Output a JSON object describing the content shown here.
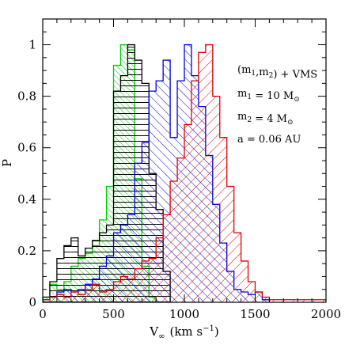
{
  "chart_data": {
    "type": "histogram",
    "xlabel": "V",
    "xlabel_sub": "∞",
    "xlabel_units": "(km s",
    "xlabel_units_sup": "−1",
    "xlabel_units_end": ")",
    "ylabel": "P",
    "xlim": [
      0,
      2000
    ],
    "ylim": [
      0,
      1.1
    ],
    "x_ticks": [
      0,
      500,
      1000,
      1500,
      2000
    ],
    "y_ticks": [
      0,
      0.2,
      0.4,
      0.6,
      0.8,
      1
    ],
    "x_tick_labels": [
      "0",
      "500",
      "1000",
      "1500",
      "2000"
    ],
    "y_tick_labels": [
      "0",
      "0.2",
      "0.4",
      "0.6",
      "0.8",
      "1"
    ],
    "bin_width": 50,
    "series": [
      {
        "color": "#00cc00",
        "hatch": "diag-down-dense",
        "bins_start": [
          0,
          50,
          100,
          150,
          200,
          250,
          300,
          350,
          400,
          450,
          500,
          550,
          600,
          650,
          700,
          750
        ],
        "values": [
          0.02,
          0.07,
          0.05,
          0.08,
          0.14,
          0.17,
          0.19,
          0.22,
          0.32,
          0.45,
          0.92,
          1.0,
          0.98,
          0.48,
          0.14,
          0.02
        ]
      },
      {
        "color": "#000000",
        "hatch": "horizontal",
        "bins_start": [
          0,
          50,
          100,
          150,
          200,
          250,
          300,
          350,
          400,
          450,
          500,
          550,
          600,
          650,
          700,
          750,
          800,
          850
        ],
        "values": [
          0.02,
          0.08,
          0.17,
          0.22,
          0.25,
          0.18,
          0.21,
          0.24,
          0.27,
          0.3,
          0.82,
          0.88,
          1.0,
          0.94,
          0.85,
          0.5,
          0.36,
          0.12
        ]
      },
      {
        "color": "#0000dd",
        "hatch": "diag-down",
        "bins_start": [
          0,
          50,
          100,
          150,
          200,
          250,
          300,
          350,
          400,
          450,
          500,
          550,
          600,
          650,
          700,
          750,
          800,
          850,
          900,
          950,
          1000,
          1050,
          1100,
          1150,
          1200,
          1250,
          1300,
          1350,
          1400,
          1450,
          1500,
          1550
        ],
        "values": [
          0.01,
          0.02,
          0.04,
          0.05,
          0.04,
          0.05,
          0.07,
          0.09,
          0.14,
          0.18,
          0.27,
          0.3,
          0.34,
          0.54,
          0.62,
          0.82,
          0.86,
          0.94,
          0.64,
          0.86,
          1.0,
          0.88,
          0.76,
          0.57,
          0.38,
          0.23,
          0.12,
          0.05,
          0.04,
          0.03,
          0.04,
          0.01
        ]
      },
      {
        "color": "#dd0000",
        "hatch": "diag-up",
        "bins_start": [
          0,
          50,
          100,
          150,
          200,
          250,
          300,
          350,
          400,
          450,
          500,
          550,
          600,
          650,
          700,
          750,
          800,
          850,
          900,
          950,
          1000,
          1050,
          1100,
          1150,
          1200,
          1250,
          1300,
          1350,
          1400,
          1450,
          1500,
          1550,
          1600,
          1650,
          1700,
          1750,
          1800,
          1850,
          1900,
          1950
        ],
        "values": [
          0.01,
          0.02,
          0.03,
          0.02,
          0.04,
          0.03,
          0.05,
          0.07,
          0.04,
          0.05,
          0.08,
          0.1,
          0.09,
          0.13,
          0.16,
          0.17,
          0.25,
          0.34,
          0.47,
          0.56,
          0.69,
          0.86,
          0.97,
          1.0,
          0.8,
          0.64,
          0.45,
          0.27,
          0.16,
          0.08,
          0.04,
          0.02,
          0.01,
          0.01,
          0.01,
          0.01,
          0.01,
          0.01,
          0.01,
          0.01
        ]
      }
    ],
    "annotations": [
      {
        "text": "(m1,m2) + VMS",
        "parts": [
          [
            "(m",
            ""
          ],
          [
            "1",
            "sub"
          ],
          [
            ",m",
            ""
          ],
          [
            "2",
            "sub"
          ],
          [
            ") + VMS",
            ""
          ]
        ]
      },
      {
        "text": "m1 = 10 M⊙",
        "parts": [
          [
            "m",
            ""
          ],
          [
            "1",
            "sub"
          ],
          [
            " = 10 M",
            ""
          ],
          [
            "⊙",
            "sub"
          ]
        ]
      },
      {
        "text": "m2 = 4 M⊙",
        "parts": [
          [
            "m",
            ""
          ],
          [
            "2",
            "sub"
          ],
          [
            " = 4 M",
            ""
          ],
          [
            "⊙",
            "sub"
          ]
        ]
      },
      {
        "text": "a = 0.06 AU",
        "parts": [
          [
            "a = 0.06 AU",
            ""
          ]
        ]
      }
    ]
  }
}
